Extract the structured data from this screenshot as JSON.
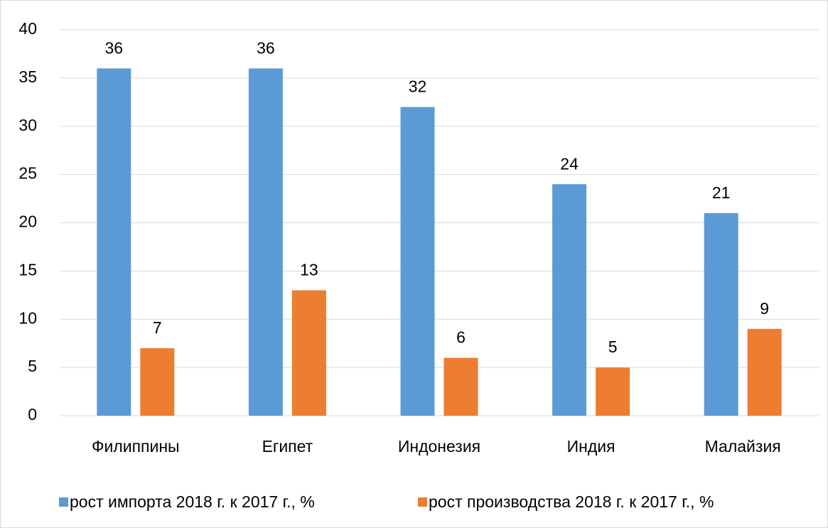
{
  "chart_data": {
    "type": "bar",
    "categories": [
      "Филиппины",
      "Египет",
      "Индонезия",
      "Индия",
      "Малайзия"
    ],
    "series": [
      {
        "name": "рост импорта 2018 г. к 2017 г., %",
        "color": "#5b9bd5",
        "values": [
          36,
          36,
          32,
          24,
          21
        ]
      },
      {
        "name": "рост производства 2018 г. к 2017 г., %",
        "color": "#ed7d31",
        "values": [
          7,
          13,
          6,
          5,
          9
        ]
      }
    ],
    "ylim": [
      0,
      40
    ],
    "yticks": [
      0,
      5,
      10,
      15,
      20,
      25,
      30,
      35,
      40
    ],
    "grid": true,
    "legend": "bottom"
  }
}
